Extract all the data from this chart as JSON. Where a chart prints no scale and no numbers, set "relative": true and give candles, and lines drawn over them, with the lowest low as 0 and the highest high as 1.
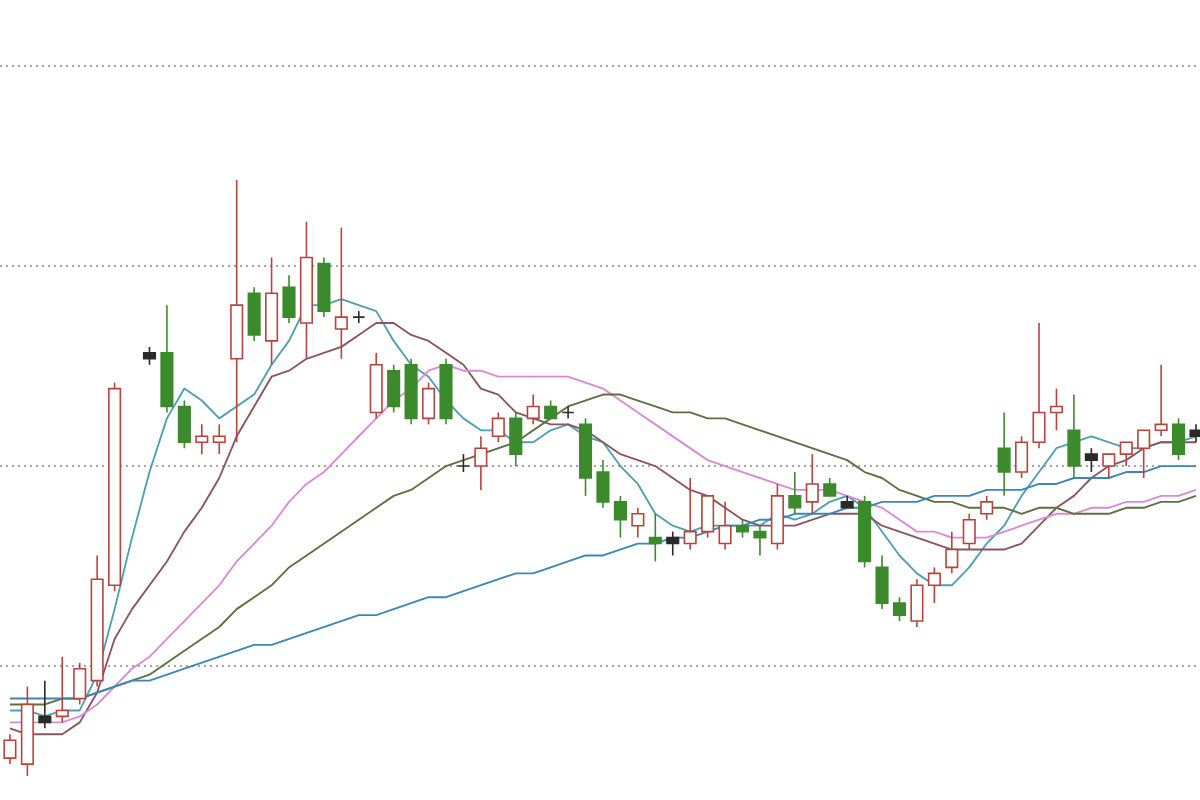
{
  "chart_data": {
    "type": "candlestick",
    "relative": true,
    "grid": "y",
    "categories": [
      null,
      null,
      null,
      null,
      null,
      null,
      null,
      null,
      null,
      null,
      null,
      null,
      null,
      null,
      null,
      null,
      null,
      null,
      null,
      null,
      null,
      null,
      null,
      null,
      null,
      null,
      null,
      null,
      null,
      null,
      null,
      null,
      null,
      null,
      null,
      null,
      null,
      null,
      null,
      null,
      null,
      null,
      null,
      null,
      null,
      null,
      null,
      null,
      null,
      null,
      null,
      null,
      null,
      null,
      null,
      null,
      null,
      null,
      null,
      null,
      null,
      null,
      null,
      null,
      null,
      null,
      null,
      null,
      null
    ],
    "ohlc": [
      [
        0.03,
        0.07,
        0.02,
        0.06
      ],
      [
        0.02,
        0.15,
        0,
        0.12
      ],
      [
        0.1,
        0.16,
        0.08,
        0.09
      ],
      [
        0.1,
        0.2,
        0.09,
        0.11
      ],
      [
        0.13,
        0.19,
        0.12,
        0.18
      ],
      [
        0.16,
        0.37,
        0.15,
        0.33
      ],
      [
        0.32,
        0.66,
        0.31,
        0.65
      ],
      null,
      [
        0.71,
        0.72,
        0.69,
        0.7
      ],
      [
        0.71,
        0.79,
        0.61,
        0.62
      ],
      [
        0.62,
        0.63,
        0.55,
        0.56
      ],
      [
        0.56,
        0.59,
        0.54,
        0.57
      ],
      [
        0.56,
        0.59,
        0.54,
        0.57
      ],
      [
        0.7,
        1,
        0.56,
        0.79
      ],
      [
        0.81,
        0.82,
        0.73,
        0.74
      ],
      [
        0.73,
        0.87,
        0.69,
        0.81
      ],
      [
        0.82,
        0.84,
        0.76,
        0.77
      ],
      [
        0.76,
        0.93,
        0.7,
        0.87
      ],
      [
        0.86,
        0.87,
        0.77,
        0.78
      ],
      [
        0.75,
        0.92,
        0.7,
        0.77
      ],
      [
        0.77,
        0.78,
        0.76,
        0.77
      ],
      [
        0.61,
        0.71,
        0.6,
        0.69
      ],
      [
        0.68,
        0.69,
        0.61,
        0.62
      ],
      [
        0.69,
        0.7,
        0.59,
        0.6
      ],
      [
        0.6,
        0.66,
        0.59,
        0.65
      ],
      [
        0.69,
        0.7,
        0.59,
        0.6
      ],
      [
        0.52,
        0.54,
        0.51,
        0.52
      ],
      [
        0.52,
        0.57,
        0.48,
        0.55
      ],
      [
        0.57,
        0.61,
        0.56,
        0.6
      ],
      [
        0.6,
        0.61,
        0.52,
        0.54
      ],
      [
        0.6,
        0.64,
        0.59,
        0.62
      ],
      [
        0.62,
        0.63,
        0.6,
        0.6
      ],
      [
        0.61,
        0.62,
        0.6,
        0.61
      ],
      [
        0.59,
        0.6,
        0.47,
        0.5
      ],
      [
        0.51,
        0.53,
        0.45,
        0.46
      ],
      [
        0.46,
        0.47,
        0.4,
        0.43
      ],
      [
        0.42,
        0.45,
        0.4,
        0.44
      ],
      [
        0.4,
        0.44,
        0.36,
        0.39
      ],
      [
        0.4,
        0.41,
        0.37,
        0.39
      ],
      [
        0.39,
        0.5,
        0.38,
        0.41
      ],
      [
        0.41,
        0.47,
        0.4,
        0.47
      ],
      [
        0.39,
        0.46,
        0.38,
        0.42
      ],
      [
        0.42,
        0.43,
        0.4,
        0.41
      ],
      [
        0.41,
        0.42,
        0.37,
        0.4
      ],
      [
        0.39,
        0.49,
        0.38,
        0.47
      ],
      [
        0.47,
        0.51,
        0.44,
        0.45
      ],
      [
        0.46,
        0.54,
        0.44,
        0.49
      ],
      [
        0.49,
        0.5,
        0.47,
        0.47
      ],
      [
        0.46,
        0.47,
        0.45,
        0.45
      ],
      [
        0.46,
        0.47,
        0.35,
        0.36
      ],
      [
        0.35,
        0.37,
        0.28,
        0.29
      ],
      [
        0.29,
        0.3,
        0.26,
        0.27
      ],
      [
        0.26,
        0.33,
        0.25,
        0.32
      ],
      [
        0.32,
        0.35,
        0.29,
        0.34
      ],
      [
        0.35,
        0.41,
        0.34,
        0.38
      ],
      [
        0.39,
        0.44,
        0.38,
        0.43
      ],
      [
        0.44,
        0.47,
        0.43,
        0.46
      ],
      [
        0.55,
        0.61,
        0.47,
        0.51
      ],
      [
        0.51,
        0.57,
        0.5,
        0.56
      ],
      [
        0.56,
        0.76,
        0.55,
        0.61
      ],
      [
        0.61,
        0.65,
        0.58,
        0.62
      ],
      [
        0.58,
        0.64,
        0.5,
        0.52
      ],
      [
        0.54,
        0.55,
        0.51,
        0.53
      ],
      [
        0.52,
        0.54,
        0.5,
        0.54
      ],
      [
        0.54,
        0.56,
        0.52,
        0.56
      ],
      [
        0.55,
        0.58,
        0.5,
        0.58
      ],
      [
        0.58,
        0.69,
        0.57,
        0.59
      ],
      [
        0.59,
        0.6,
        0.53,
        0.54
      ],
      [
        0.58,
        0.59,
        0.56,
        0.57
      ]
    ],
    "colors": [
      "#b8433c",
      "#b8433c",
      "#2a2a2a",
      "#b8433c",
      "#b8433c",
      "#b8433c",
      "#b8433c",
      null,
      "#2a2a2a",
      "#3b8a2c",
      "#3b8a2c",
      "#b8433c",
      "#b8433c",
      "#b8433c",
      "#3b8a2c",
      "#b8433c",
      "#3b8a2c",
      "#b8433c",
      "#3b8a2c",
      "#b8433c",
      "#2a2a2a",
      "#b8433c",
      "#3b8a2c",
      "#3b8a2c",
      "#b8433c",
      "#3b8a2c",
      "#2a2a2a",
      "#b8433c",
      "#b8433c",
      "#3b8a2c",
      "#b8433c",
      "#3b8a2c",
      "#2a2a2a",
      "#3b8a2c",
      "#3b8a2c",
      "#3b8a2c",
      "#b8433c",
      "#3b8a2c",
      "#2a2a2a",
      "#b8433c",
      "#b8433c",
      "#b8433c",
      "#3b8a2c",
      "#3b8a2c",
      "#b8433c",
      "#3b8a2c",
      "#b8433c",
      "#3b8a2c",
      "#2a2a2a",
      "#3b8a2c",
      "#3b8a2c",
      "#3b8a2c",
      "#b8433c",
      "#b8433c",
      "#b8433c",
      "#b8433c",
      "#b8433c",
      "#3b8a2c",
      "#b8433c",
      "#b8433c",
      "#b8433c",
      "#3b8a2c",
      "#2a2a2a",
      "#b8433c",
      "#b8433c",
      "#b8433c",
      "#b8433c",
      "#3b8a2c",
      "#2a2a2a"
    ],
    "series": [
      {
        "type": "line",
        "color": "#4f9fb0",
        "values": [
          0.11,
          0.11,
          0.1,
          0.11,
          0.11,
          0.17,
          0.28,
          0.4,
          0.51,
          0.6,
          0.65,
          0.63,
          0.6,
          0.62,
          0.64,
          0.69,
          0.73,
          0.79,
          0.79,
          0.8,
          0.79,
          0.78,
          0.73,
          0.69,
          0.67,
          0.63,
          0.6,
          0.58,
          0.58,
          0.56,
          0.56,
          0.58,
          0.59,
          0.57,
          0.56,
          0.52,
          0.49,
          0.44,
          0.42,
          0.41,
          0.42,
          0.42,
          0.42,
          0.42,
          0.44,
          0.43,
          0.44,
          0.46,
          0.47,
          0.45,
          0.41,
          0.37,
          0.34,
          0.32,
          0.32,
          0.35,
          0.39,
          0.42,
          0.47,
          0.51,
          0.55,
          0.56,
          0.57,
          0.56,
          0.55,
          0.55,
          0.56,
          0.56,
          0.57
        ]
      },
      {
        "type": "line",
        "color": "#8a5560",
        "values": [
          0.08,
          0.07,
          0.07,
          0.07,
          0.09,
          0.14,
          0.23,
          0.28,
          0.32,
          0.36,
          0.41,
          0.45,
          0.5,
          0.57,
          0.62,
          0.67,
          0.68,
          0.7,
          0.71,
          0.72,
          0.74,
          0.76,
          0.76,
          0.74,
          0.73,
          0.71,
          0.69,
          0.65,
          0.64,
          0.61,
          0.6,
          0.59,
          0.59,
          0.58,
          0.56,
          0.54,
          0.53,
          0.52,
          0.5,
          0.48,
          0.47,
          0.45,
          0.43,
          0.42,
          0.42,
          0.42,
          0.43,
          0.44,
          0.44,
          0.44,
          0.42,
          0.41,
          0.4,
          0.39,
          0.38,
          0.38,
          0.38,
          0.38,
          0.39,
          0.42,
          0.45,
          0.47,
          0.5,
          0.52,
          0.53,
          0.55,
          0.56,
          0.56,
          0.56
        ]
      },
      {
        "type": "line",
        "color": "#d98ad6",
        "values": [
          0.09,
          0.09,
          0.09,
          0.09,
          0.1,
          0.12,
          0.15,
          0.18,
          0.2,
          0.23,
          0.26,
          0.29,
          0.32,
          0.36,
          0.39,
          0.42,
          0.46,
          0.49,
          0.51,
          0.54,
          0.57,
          0.6,
          0.63,
          0.65,
          0.68,
          0.69,
          0.68,
          0.68,
          0.67,
          0.67,
          0.67,
          0.67,
          0.67,
          0.66,
          0.65,
          0.63,
          0.61,
          0.59,
          0.57,
          0.55,
          0.53,
          0.52,
          0.51,
          0.5,
          0.49,
          0.48,
          0.48,
          0.48,
          0.47,
          0.46,
          0.45,
          0.43,
          0.41,
          0.41,
          0.4,
          0.4,
          0.4,
          0.41,
          0.42,
          0.43,
          0.44,
          0.44,
          0.45,
          0.45,
          0.46,
          0.46,
          0.47,
          0.47,
          0.48
        ]
      },
      {
        "type": "line",
        "color": "#5f6f3f",
        "values": [
          0.12,
          0.12,
          0.12,
          0.13,
          0.13,
          0.14,
          0.15,
          0.16,
          0.17,
          0.19,
          0.21,
          0.23,
          0.25,
          0.28,
          0.3,
          0.32,
          0.35,
          0.37,
          0.39,
          0.41,
          0.43,
          0.45,
          0.47,
          0.48,
          0.5,
          0.52,
          0.53,
          0.54,
          0.55,
          0.56,
          0.58,
          0.6,
          0.62,
          0.63,
          0.64,
          0.64,
          0.63,
          0.62,
          0.61,
          0.61,
          0.6,
          0.6,
          0.59,
          0.58,
          0.57,
          0.56,
          0.55,
          0.54,
          0.53,
          0.51,
          0.5,
          0.48,
          0.47,
          0.46,
          0.46,
          0.45,
          0.45,
          0.45,
          0.44,
          0.45,
          0.45,
          0.44,
          0.44,
          0.44,
          0.45,
          0.45,
          0.46,
          0.46,
          0.47
        ]
      },
      {
        "type": "line",
        "color": "#3e86b5",
        "values": [
          0.13,
          0.13,
          0.13,
          0.13,
          0.13,
          0.14,
          0.15,
          0.16,
          0.16,
          0.17,
          0.18,
          0.19,
          0.2,
          0.21,
          0.22,
          0.22,
          0.23,
          0.24,
          0.25,
          0.26,
          0.27,
          0.27,
          0.28,
          0.29,
          0.3,
          0.3,
          0.31,
          0.32,
          0.33,
          0.34,
          0.34,
          0.35,
          0.36,
          0.37,
          0.37,
          0.38,
          0.39,
          0.39,
          0.4,
          0.4,
          0.41,
          0.42,
          0.42,
          0.43,
          0.43,
          0.44,
          0.44,
          0.44,
          0.45,
          0.45,
          0.46,
          0.46,
          0.46,
          0.47,
          0.47,
          0.47,
          0.48,
          0.48,
          0.48,
          0.49,
          0.49,
          0.5,
          0.5,
          0.5,
          0.51,
          0.51,
          0.52,
          0.52,
          0.52
        ]
      }
    ]
  }
}
